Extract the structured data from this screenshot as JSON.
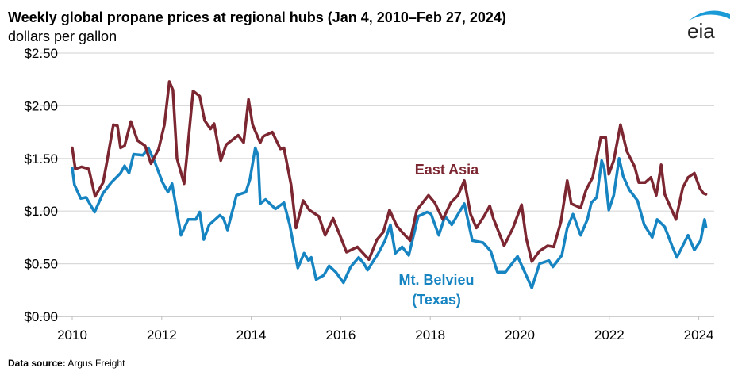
{
  "title": "Weekly global propane prices at regional hubs (Jan 4, 2010–Feb 27, 2024)",
  "subtitle": "dollars per gallon",
  "logo_text": "eia",
  "source_label": "Data source:",
  "source_value": "Argus Freight",
  "colors": {
    "east_asia": "#7b2630",
    "mt_belvieu": "#1784c2",
    "grid": "#d9d9d9",
    "axis": "#bfbfbf"
  },
  "chart_data": {
    "type": "line",
    "title": "Weekly global propane prices at regional hubs (Jan 4, 2010–Feb 27, 2024)",
    "ylabel": "dollars per gallon",
    "xlabel": "",
    "xlim": [
      2010,
      2024.16
    ],
    "ylim": [
      0,
      2.5
    ],
    "grid": true,
    "x_ticks": [
      2010,
      2012,
      2014,
      2016,
      2018,
      2020,
      2022,
      2024
    ],
    "x_tick_labels": [
      "2010",
      "2012",
      "2014",
      "2016",
      "2018",
      "2020",
      "2022",
      "2024"
    ],
    "y_ticks": [
      0,
      0.5,
      1,
      1.5,
      2,
      2.5
    ],
    "y_tick_labels": [
      "$0.00",
      "$0.50",
      "$1.00",
      "$1.50",
      "$2.00",
      "$2.50"
    ],
    "series": [
      {
        "name": "East Asia",
        "label_lines": [
          "East Asia"
        ],
        "points": [
          [
            2010.0,
            1.6
          ],
          [
            2010.07,
            1.4
          ],
          [
            2010.21,
            1.42
          ],
          [
            2010.37,
            1.4
          ],
          [
            2010.51,
            1.14
          ],
          [
            2010.69,
            1.27
          ],
          [
            2010.78,
            1.48
          ],
          [
            2010.92,
            1.82
          ],
          [
            2011.01,
            1.81
          ],
          [
            2011.08,
            1.6
          ],
          [
            2011.17,
            1.62
          ],
          [
            2011.31,
            1.85
          ],
          [
            2011.46,
            1.67
          ],
          [
            2011.63,
            1.62
          ],
          [
            2011.76,
            1.45
          ],
          [
            2011.93,
            1.59
          ],
          [
            2012.06,
            1.82
          ],
          [
            2012.17,
            2.23
          ],
          [
            2012.25,
            2.15
          ],
          [
            2012.34,
            1.5
          ],
          [
            2012.5,
            1.26
          ],
          [
            2012.59,
            1.65
          ],
          [
            2012.7,
            2.14
          ],
          [
            2012.85,
            2.09
          ],
          [
            2012.96,
            1.86
          ],
          [
            2013.09,
            1.78
          ],
          [
            2013.17,
            1.83
          ],
          [
            2013.32,
            1.48
          ],
          [
            2013.44,
            1.63
          ],
          [
            2013.71,
            1.72
          ],
          [
            2013.83,
            1.65
          ],
          [
            2013.94,
            2.06
          ],
          [
            2014.03,
            1.82
          ],
          [
            2014.2,
            1.65
          ],
          [
            2014.27,
            1.71
          ],
          [
            2014.47,
            1.75
          ],
          [
            2014.65,
            1.59
          ],
          [
            2014.73,
            1.6
          ],
          [
            2014.89,
            1.25
          ],
          [
            2015.0,
            0.84
          ],
          [
            2015.16,
            1.1
          ],
          [
            2015.3,
            1.01
          ],
          [
            2015.51,
            0.95
          ],
          [
            2015.65,
            0.77
          ],
          [
            2015.83,
            0.93
          ],
          [
            2015.98,
            0.77
          ],
          [
            2016.13,
            0.61
          ],
          [
            2016.37,
            0.66
          ],
          [
            2016.63,
            0.54
          ],
          [
            2016.81,
            0.73
          ],
          [
            2016.95,
            0.8
          ],
          [
            2017.09,
            1.01
          ],
          [
            2017.25,
            0.86
          ],
          [
            2017.37,
            0.8
          ],
          [
            2017.55,
            0.72
          ],
          [
            2017.7,
            1.01
          ],
          [
            2017.96,
            1.15
          ],
          [
            2018.1,
            1.08
          ],
          [
            2018.28,
            0.92
          ],
          [
            2018.46,
            1.08
          ],
          [
            2018.62,
            1.15
          ],
          [
            2018.76,
            1.29
          ],
          [
            2018.9,
            0.97
          ],
          [
            2019.03,
            0.84
          ],
          [
            2019.2,
            0.95
          ],
          [
            2019.33,
            1.05
          ],
          [
            2019.41,
            0.93
          ],
          [
            2019.65,
            0.67
          ],
          [
            2019.85,
            0.84
          ],
          [
            2020.04,
            1.06
          ],
          [
            2020.14,
            0.75
          ],
          [
            2020.27,
            0.52
          ],
          [
            2020.44,
            0.62
          ],
          [
            2020.62,
            0.67
          ],
          [
            2020.76,
            0.66
          ],
          [
            2020.92,
            0.9
          ],
          [
            2021.06,
            1.29
          ],
          [
            2021.15,
            1.07
          ],
          [
            2021.36,
            1.03
          ],
          [
            2021.48,
            1.2
          ],
          [
            2021.63,
            1.32
          ],
          [
            2021.81,
            1.7
          ],
          [
            2021.92,
            1.7
          ],
          [
            2021.99,
            1.35
          ],
          [
            2022.1,
            1.48
          ],
          [
            2022.25,
            1.82
          ],
          [
            2022.39,
            1.57
          ],
          [
            2022.57,
            1.42
          ],
          [
            2022.66,
            1.27
          ],
          [
            2022.8,
            1.27
          ],
          [
            2022.93,
            1.32
          ],
          [
            2023.05,
            1.15
          ],
          [
            2023.16,
            1.44
          ],
          [
            2023.24,
            1.16
          ],
          [
            2023.49,
            0.92
          ],
          [
            2023.64,
            1.22
          ],
          [
            2023.76,
            1.32
          ],
          [
            2023.9,
            1.36
          ],
          [
            2024.02,
            1.22
          ],
          [
            2024.1,
            1.17
          ],
          [
            2024.16,
            1.16
          ]
        ]
      },
      {
        "name": "Mt. Belvieu (Texas)",
        "label_lines": [
          "Mt. Belvieu",
          "(Texas)"
        ],
        "points": [
          [
            2010.0,
            1.41
          ],
          [
            2010.05,
            1.25
          ],
          [
            2010.19,
            1.12
          ],
          [
            2010.31,
            1.13
          ],
          [
            2010.5,
            0.99
          ],
          [
            2010.69,
            1.17
          ],
          [
            2010.87,
            1.27
          ],
          [
            2011.08,
            1.36
          ],
          [
            2011.17,
            1.43
          ],
          [
            2011.27,
            1.36
          ],
          [
            2011.37,
            1.54
          ],
          [
            2011.58,
            1.53
          ],
          [
            2011.7,
            1.6
          ],
          [
            2011.85,
            1.46
          ],
          [
            2012.02,
            1.27
          ],
          [
            2012.14,
            1.18
          ],
          [
            2012.23,
            1.26
          ],
          [
            2012.43,
            0.77
          ],
          [
            2012.59,
            0.92
          ],
          [
            2012.76,
            0.92
          ],
          [
            2012.85,
            0.99
          ],
          [
            2012.94,
            0.73
          ],
          [
            2013.06,
            0.87
          ],
          [
            2013.3,
            0.96
          ],
          [
            2013.38,
            0.93
          ],
          [
            2013.47,
            0.82
          ],
          [
            2013.67,
            1.15
          ],
          [
            2013.88,
            1.18
          ],
          [
            2013.97,
            1.3
          ],
          [
            2014.09,
            1.6
          ],
          [
            2014.15,
            1.53
          ],
          [
            2014.2,
            1.07
          ],
          [
            2014.32,
            1.11
          ],
          [
            2014.54,
            1.02
          ],
          [
            2014.73,
            1.08
          ],
          [
            2014.86,
            0.87
          ],
          [
            2015.04,
            0.46
          ],
          [
            2015.18,
            0.6
          ],
          [
            2015.28,
            0.53
          ],
          [
            2015.34,
            0.56
          ],
          [
            2015.45,
            0.35
          ],
          [
            2015.62,
            0.39
          ],
          [
            2015.74,
            0.48
          ],
          [
            2015.89,
            0.42
          ],
          [
            2016.06,
            0.32
          ],
          [
            2016.22,
            0.47
          ],
          [
            2016.4,
            0.56
          ],
          [
            2016.52,
            0.5
          ],
          [
            2016.6,
            0.44
          ],
          [
            2016.84,
            0.6
          ],
          [
            2016.99,
            0.72
          ],
          [
            2017.11,
            0.87
          ],
          [
            2017.22,
            0.6
          ],
          [
            2017.37,
            0.66
          ],
          [
            2017.52,
            0.58
          ],
          [
            2017.73,
            0.95
          ],
          [
            2017.93,
            0.99
          ],
          [
            2018.02,
            0.97
          ],
          [
            2018.19,
            0.77
          ],
          [
            2018.33,
            0.95
          ],
          [
            2018.48,
            0.87
          ],
          [
            2018.76,
            1.07
          ],
          [
            2018.94,
            0.72
          ],
          [
            2019.18,
            0.7
          ],
          [
            2019.35,
            0.62
          ],
          [
            2019.5,
            0.42
          ],
          [
            2019.68,
            0.42
          ],
          [
            2019.95,
            0.57
          ],
          [
            2020.09,
            0.44
          ],
          [
            2020.27,
            0.27
          ],
          [
            2020.44,
            0.5
          ],
          [
            2020.65,
            0.53
          ],
          [
            2020.74,
            0.47
          ],
          [
            2020.94,
            0.58
          ],
          [
            2021.06,
            0.84
          ],
          [
            2021.19,
            0.97
          ],
          [
            2021.36,
            0.77
          ],
          [
            2021.51,
            0.92
          ],
          [
            2021.6,
            1.08
          ],
          [
            2021.72,
            1.13
          ],
          [
            2021.83,
            1.48
          ],
          [
            2021.89,
            1.4
          ],
          [
            2021.99,
            1.01
          ],
          [
            2022.1,
            1.15
          ],
          [
            2022.22,
            1.5
          ],
          [
            2022.31,
            1.33
          ],
          [
            2022.45,
            1.2
          ],
          [
            2022.63,
            1.1
          ],
          [
            2022.78,
            0.87
          ],
          [
            2022.96,
            0.75
          ],
          [
            2023.07,
            0.92
          ],
          [
            2023.24,
            0.85
          ],
          [
            2023.4,
            0.67
          ],
          [
            2023.51,
            0.56
          ],
          [
            2023.64,
            0.67
          ],
          [
            2023.76,
            0.77
          ],
          [
            2023.9,
            0.63
          ],
          [
            2024.04,
            0.72
          ],
          [
            2024.13,
            0.92
          ],
          [
            2024.16,
            0.85
          ]
        ]
      }
    ]
  }
}
